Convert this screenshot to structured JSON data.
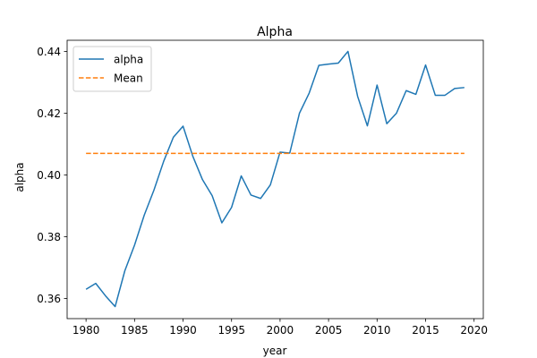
{
  "chart_data": {
    "type": "line",
    "title": "Alpha",
    "xlabel": "year",
    "ylabel": "alpha",
    "xlim": [
      1978.05,
      2020.95
    ],
    "ylim": [
      0.3535,
      0.4436
    ],
    "x_ticks": [
      1980,
      1985,
      1990,
      1995,
      2000,
      2005,
      2010,
      2015,
      2020
    ],
    "y_ticks": [
      0.36,
      0.38,
      0.4,
      0.42,
      0.44
    ],
    "y_tick_labels": [
      "0.36",
      "0.38",
      "0.40",
      "0.42",
      "0.44"
    ],
    "grid": false,
    "legend_position": "upper left",
    "series": [
      {
        "name": "alpha",
        "color": "#1f77b4",
        "style": "solid",
        "x": [
          1980,
          1981,
          1982,
          1983,
          1984,
          1985,
          1986,
          1987,
          1988,
          1989,
          1990,
          1991,
          1992,
          1993,
          1994,
          1995,
          1996,
          1997,
          1998,
          1999,
          2000,
          2001,
          2002,
          2003,
          2004,
          2005,
          2006,
          2007,
          2008,
          2009,
          2010,
          2011,
          2012,
          2013,
          2014,
          2015,
          2016,
          2017,
          2018,
          2019
        ],
        "values": [
          0.363,
          0.3649,
          0.3609,
          0.3574,
          0.369,
          0.3773,
          0.387,
          0.3951,
          0.4044,
          0.4122,
          0.4158,
          0.4061,
          0.3985,
          0.3933,
          0.3845,
          0.3895,
          0.3997,
          0.3935,
          0.3924,
          0.3968,
          0.4074,
          0.4071,
          0.42,
          0.4265,
          0.4355,
          0.4359,
          0.4362,
          0.44,
          0.4254,
          0.4159,
          0.4291,
          0.4166,
          0.42,
          0.4273,
          0.4261,
          0.4356,
          0.4258,
          0.4258,
          0.428,
          0.4283
        ]
      },
      {
        "name": "Mean",
        "color": "#ff7f0e",
        "style": "dashed",
        "x": [
          1980,
          2019
        ],
        "values": [
          0.407,
          0.407
        ]
      }
    ]
  }
}
